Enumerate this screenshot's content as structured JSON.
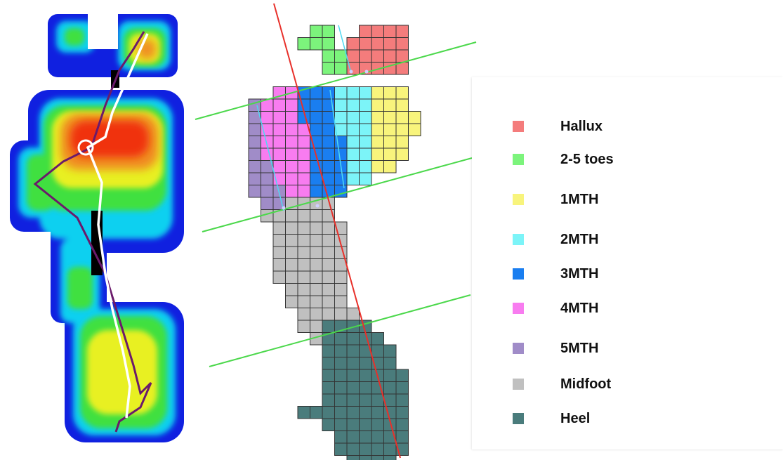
{
  "colors": {
    "grid_line": "#333333",
    "axis_line": "#e8302a",
    "division_line": "#4bd84b",
    "cop_path": "#ffffff",
    "contour_path": "#6b1a6b"
  },
  "legend": [
    {
      "key": "hallux",
      "label": "Hallux",
      "color": "#f47c7c"
    },
    {
      "key": "toes",
      "label": "2-5 toes",
      "color": "#7cf47c"
    },
    {
      "key": "mth1",
      "label": "1MTH",
      "color": "#f8f47c"
    },
    {
      "key": "mth2",
      "label": "2MTH",
      "color": "#7cf4f8"
    },
    {
      "key": "mth3",
      "label": "3MTH",
      "color": "#1a7ef0"
    },
    {
      "key": "mth4",
      "label": "4MTH",
      "color": "#f87cf0"
    },
    {
      "key": "mth5",
      "label": "5MTH",
      "color": "#a08cc8"
    },
    {
      "key": "midfoot",
      "label": "Midfoot",
      "color": "#c0c0c0"
    },
    {
      "key": "heel",
      "label": "Heel",
      "color": "#4a7c7c"
    }
  ]
}
